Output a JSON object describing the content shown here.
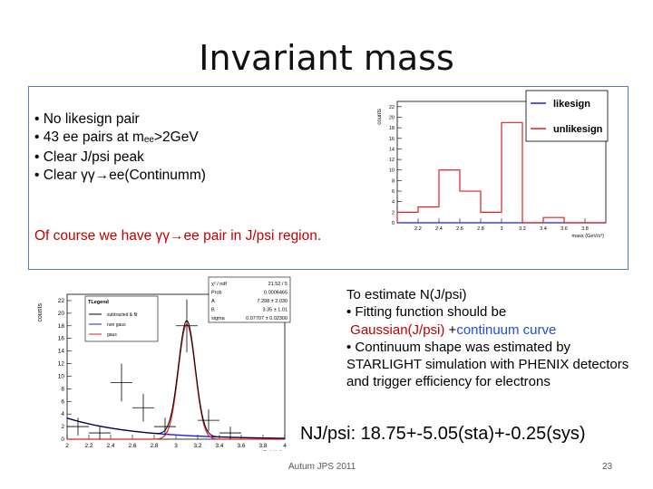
{
  "slide": {
    "title": "Invariant mass",
    "bullets": [
      {
        "pre": "• No likesign pair",
        "sub": "",
        "post": ""
      },
      {
        "pre": "• 43 ee pairs at m",
        "sub": "ee",
        "post": ">2GeV"
      },
      {
        "pre": "• Clear J/psi peak",
        "sub": "",
        "post": ""
      },
      {
        "pre": "• Clear γγ→ee(Continumm)",
        "sub": "",
        "post": ""
      }
    ],
    "red_note": "Of course we have γγ→ee pair in J/psi region.",
    "estimate": {
      "line1": "To estimate N(J/psi)",
      "line2": "• Fitting function should be",
      "gauss": "Gaussian(J/psi)",
      "plus": " +",
      "continuum": "continuum curve",
      "line4": "• Continuum shape was estimated by STARLIGHT simulation with PHENIX detectors and trigger efficiency for electrons"
    },
    "result": "NJ/psi: 18.75+-5.05(sta)+-0.25(sys)",
    "footer": "Autum JPS 2011",
    "page": "23"
  },
  "chart_data": [
    {
      "type": "bar",
      "xlabel": "mass (GeV/c²)",
      "ylabel": "counts",
      "xlim": [
        2,
        4
      ],
      "ylim": [
        0,
        23
      ],
      "x_ticks": [
        "2",
        "2.2",
        "2.4",
        "2.6",
        "2.8",
        "3",
        "3.2",
        "3.4",
        "3.6",
        "3.8",
        "4"
      ],
      "y_ticks": [
        "0",
        "2",
        "4",
        "6",
        "8",
        "10",
        "12",
        "14",
        "16",
        "18",
        "20",
        "22"
      ],
      "bin_edges": [
        2.0,
        2.2,
        2.4,
        2.6,
        2.8,
        3.0,
        3.2,
        3.4,
        3.6,
        3.8,
        4.0
      ],
      "series": [
        {
          "name": "likesign",
          "color": "#1a1aff",
          "values": [
            0,
            0,
            0,
            0,
            0,
            0,
            0,
            0,
            0,
            0
          ]
        },
        {
          "name": "unlikesign",
          "color": "#e02020",
          "values": [
            2,
            3,
            10,
            6,
            2,
            19,
            0,
            1,
            0,
            0
          ]
        }
      ],
      "legend": "top-right"
    },
    {
      "type": "line",
      "xlabel": "mass (GeV/c²)",
      "ylabel": "counts",
      "xlim": [
        2,
        4
      ],
      "ylim": [
        0,
        23
      ],
      "x_ticks": [
        "2",
        "2.2",
        "2.4",
        "2.6",
        "2.8",
        "3",
        "3.2",
        "3.4",
        "3.6",
        "3.8",
        "4"
      ],
      "y_ticks": [
        "0",
        "2",
        "4",
        "6",
        "8",
        "10",
        "12",
        "14",
        "16",
        "18",
        "20",
        "22"
      ],
      "legend": {
        "title": "TLegend",
        "entries": [
          {
            "label": "subtracted & fit",
            "color": "#000000"
          },
          {
            "label": "non gaus",
            "color": "#1a1aff"
          },
          {
            "label": "gaus",
            "color": "#e02020"
          }
        ]
      },
      "stats": [
        {
          "label": "χ² / ndf",
          "value": "21.52 / 5"
        },
        {
          "label": "Prob",
          "value": "0.0006465"
        },
        {
          "label": "A",
          "value": "7.298 ± 2.030"
        },
        {
          "label": "B",
          "value": "3.35 ± 1.01"
        },
        {
          "label": "sigma",
          "value": "0.07707 ± 0.02300"
        }
      ],
      "points": [
        {
          "x": 2.1,
          "y": 2,
          "ex": 0.1,
          "ey": 1.4
        },
        {
          "x": 2.3,
          "y": 1,
          "ex": 0.1,
          "ey": 1.0
        },
        {
          "x": 2.5,
          "y": 9,
          "ex": 0.1,
          "ey": 3.0
        },
        {
          "x": 2.7,
          "y": 5,
          "ex": 0.1,
          "ey": 2.2
        },
        {
          "x": 2.9,
          "y": 2,
          "ex": 0.1,
          "ey": 1.4
        },
        {
          "x": 3.1,
          "y": 18,
          "ex": 0.1,
          "ey": 4.2
        },
        {
          "x": 3.3,
          "y": 3,
          "ex": 0.1,
          "ey": 1.7
        },
        {
          "x": 3.5,
          "y": 1,
          "ex": 0.1,
          "ey": 1.0
        }
      ],
      "fit_total": {
        "A": 7.298,
        "mean": 3.1,
        "sigma": 0.07707,
        "B": 3.35,
        "slope": 1.6
      }
    }
  ]
}
